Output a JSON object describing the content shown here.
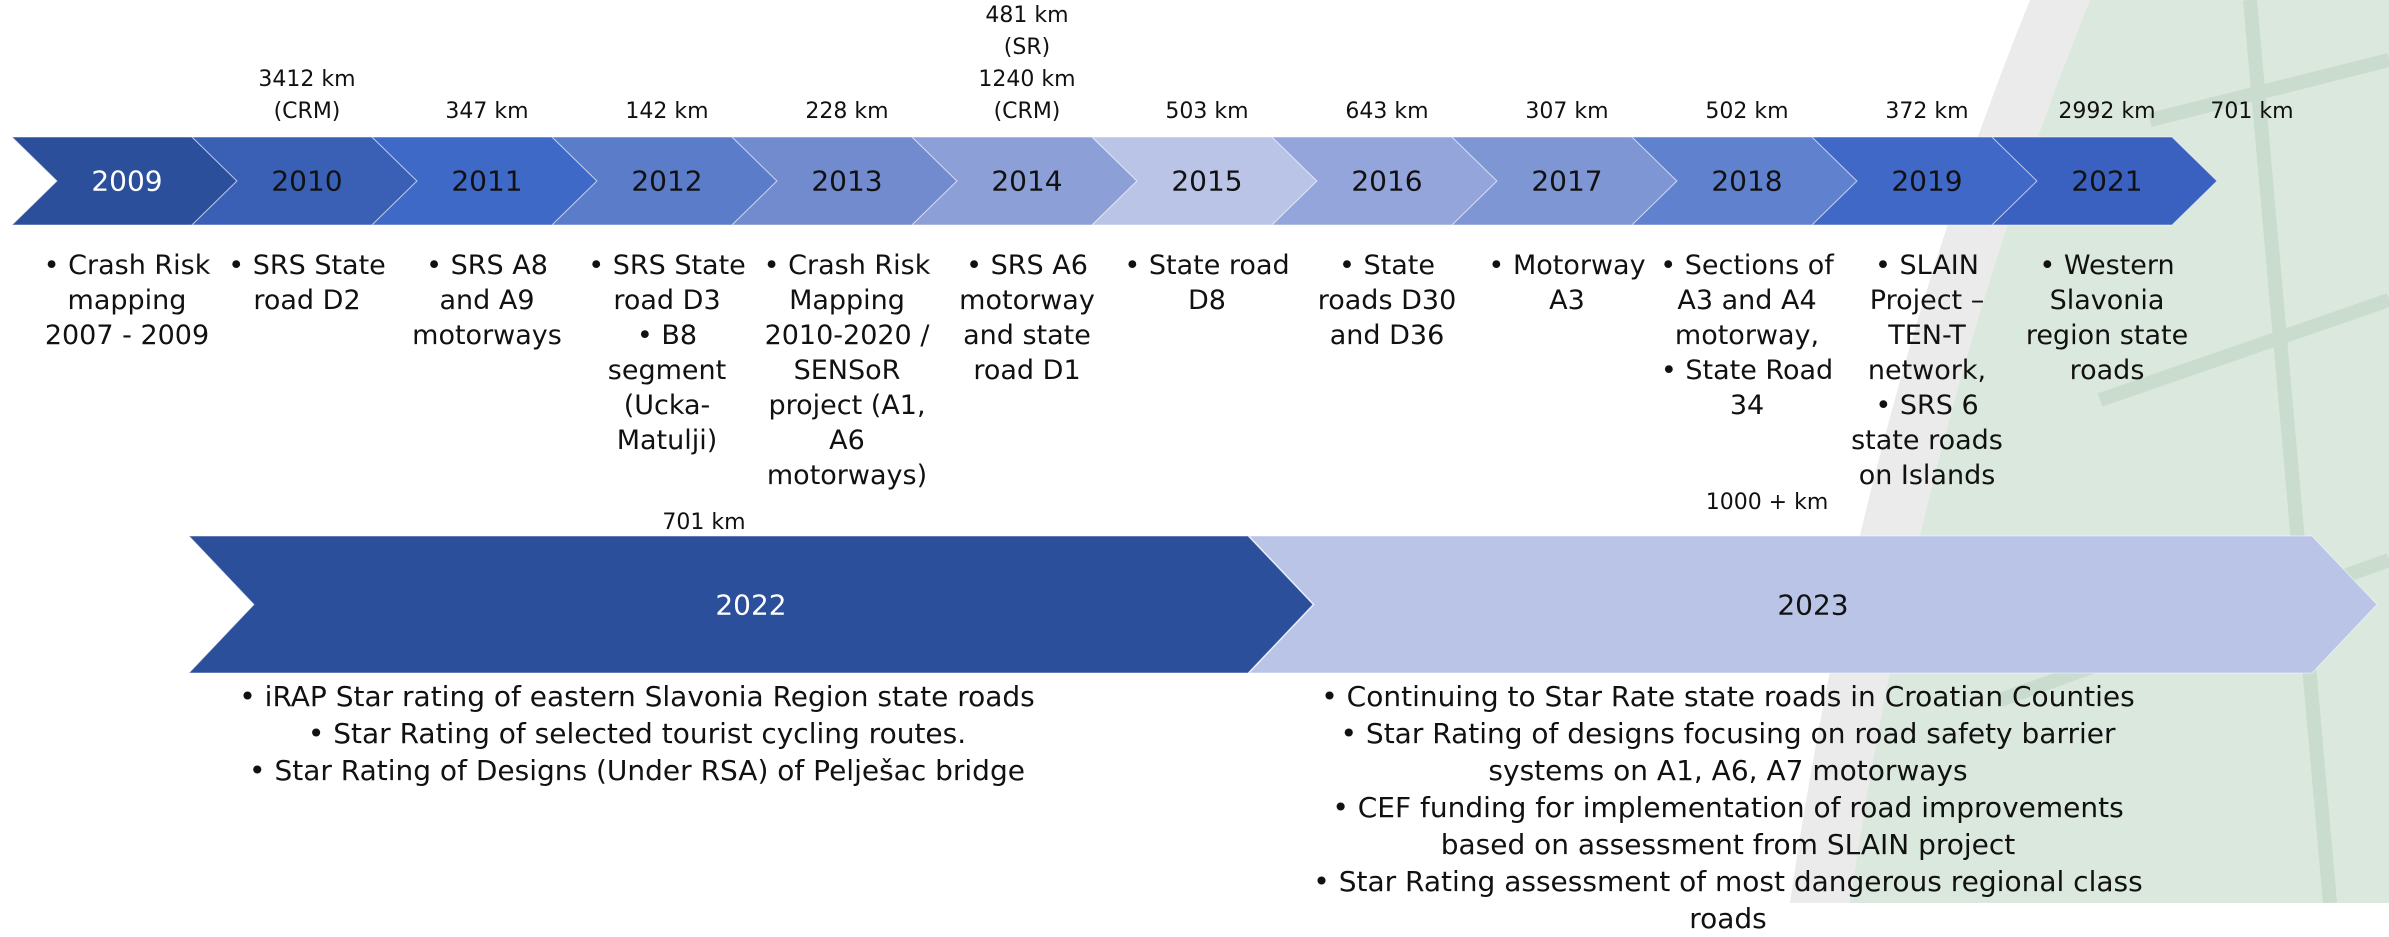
{
  "timeline": [
    {
      "year": "2009",
      "km": [],
      "bullets": [
        "Crash Risk mapping 2007 - 2009"
      ],
      "color": "#2c4f9c",
      "text_color": "#ffffff"
    },
    {
      "year": "2010",
      "km": [
        "3412 km",
        "(CRM)"
      ],
      "bullets": [
        "SRS State road D2"
      ],
      "color": "#3a60b6",
      "text_color": "#111111"
    },
    {
      "year": "2011",
      "km": [
        "347 km"
      ],
      "bullets": [
        "SRS A8 and A9 motorways"
      ],
      "color": "#3f69c6",
      "text_color": "#111111"
    },
    {
      "year": "2012",
      "km": [
        "142 km"
      ],
      "bullets": [
        "SRS State road D3",
        "B8 segment (Ucka-Matulji)"
      ],
      "color": "#5b7cc9",
      "text_color": "#111111"
    },
    {
      "year": "2013",
      "km": [
        "228 km"
      ],
      "bullets": [
        "Crash Risk Mapping 2010-2020 / SENSoR project (A1, A6 motorways)"
      ],
      "color": "#728bce",
      "text_color": "#111111"
    },
    {
      "year": "2014",
      "km": [
        "481 km",
        "(SR)",
        "1240 km",
        "(CRM)"
      ],
      "bullets": [
        "SRS A6 motorway and state road D1"
      ],
      "color": "#8c9fd7",
      "text_color": "#111111"
    },
    {
      "year": "2015",
      "km": [
        "503 km"
      ],
      "bullets": [
        "State road D8"
      ],
      "color": "#b9c4e7",
      "text_color": "#111111"
    },
    {
      "year": "2016",
      "km": [
        "643 km"
      ],
      "bullets": [
        "State roads D30 and D36"
      ],
      "color": "#93a5db",
      "text_color": "#111111"
    },
    {
      "year": "2017",
      "km": [
        "307 km"
      ],
      "bullets": [
        "Motorway A3"
      ],
      "color": "#7f96d4",
      "text_color": "#111111"
    },
    {
      "year": "2018",
      "km": [
        "502 km"
      ],
      "bullets": [
        "Sections of A3 and A4 motorway,",
        "State Road 34"
      ],
      "color": "#6081cd",
      "text_color": "#111111"
    },
    {
      "year": "2019",
      "km": [
        "372 km"
      ],
      "bullets": [
        "SLAIN Project – TEN-T network,",
        "SRS 6 state roads on Islands"
      ],
      "color": "#4068c6",
      "text_color": "#111111"
    },
    {
      "year": "2021",
      "km": [
        "2992 km"
      ],
      "bullets": [
        "Western Slavonia region state roads"
      ],
      "color": "#3a61bf",
      "text_color": "#111111"
    }
  ],
  "extra_km": "701 km",
  "phases": [
    {
      "year": "2022",
      "km": "701 km",
      "bullets": [
        "iRAP Star rating of eastern Slavonia Region state roads",
        "Star Rating of selected tourist cycling routes.",
        "Star Rating of Designs (Under RSA) of Pelješac bridge"
      ],
      "color": "#2c4f9c",
      "text_color": "#ffffff"
    },
    {
      "year": "2023",
      "km": "1000 + km",
      "bullets": [
        "Continuing to Star Rate state roads in Croatian Counties",
        "Star Rating of designs focusing on road safety barrier systems on A1, A6, A7 motorways",
        "CEF funding for implementation of road improvements based on assessment from SLAIN project",
        "Star Rating assessment of most dangerous regional class roads"
      ],
      "color": "#b9c4e7",
      "text_color": "#111111"
    }
  ]
}
